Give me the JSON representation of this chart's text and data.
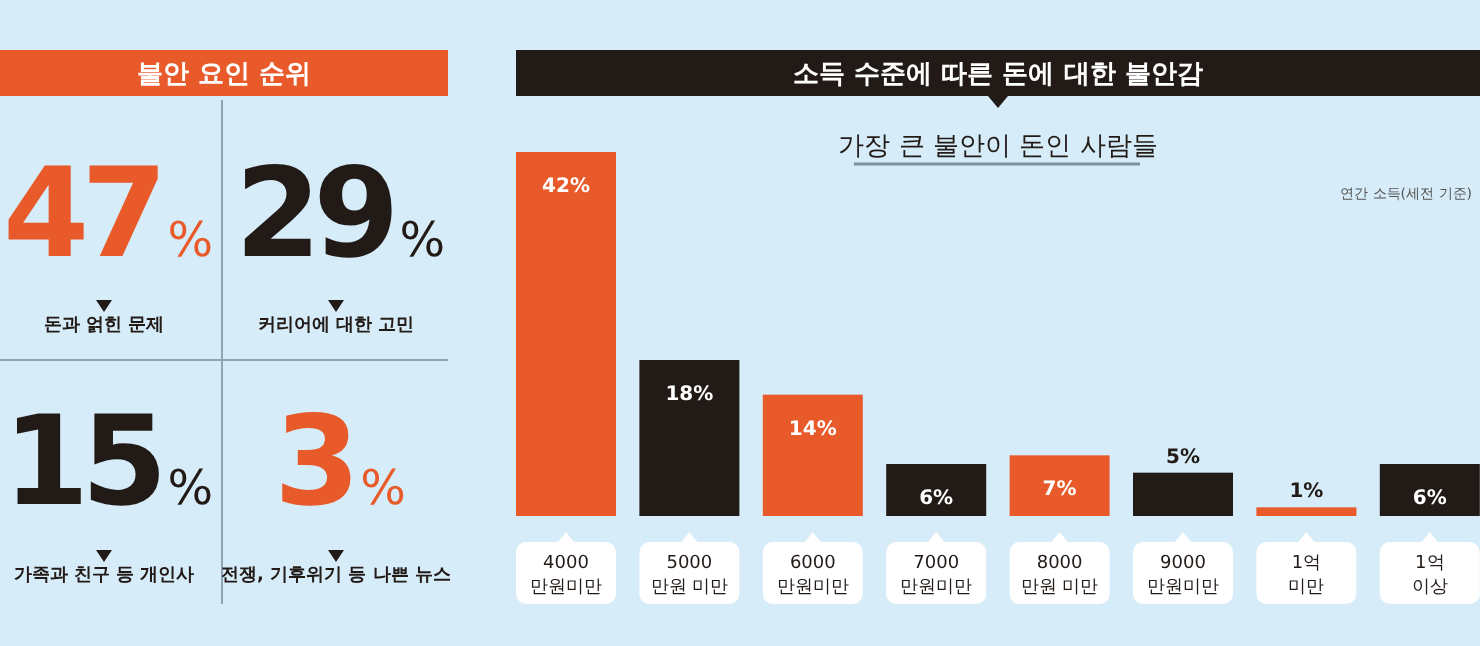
{
  "chart_data": [
    {
      "type": "other",
      "title": "불안 요인 순위",
      "categories": [
        "돈과 얽힌 문제",
        "커리어에 대한 고민",
        "가족과 친구 등 개인사",
        "전쟁, 기후위기 등 나쁜 뉴스"
      ],
      "values": [
        47,
        29,
        15,
        3
      ],
      "value_labels": [
        "47%",
        "29%",
        "15%",
        "3%"
      ],
      "colors": [
        "#e85a2a",
        "#221a16",
        "#221a16",
        "#e85a2a"
      ]
    },
    {
      "type": "bar",
      "title": "소득 수준에 따른 돈에 대한 불안감",
      "subtitle": "가장 큰 불안이 돈인 사람들",
      "annotations": [
        "연간 소득(세전 기준)"
      ],
      "categories": [
        "4000\n만원미만",
        "5000\n만원 미만",
        "6000\n만원미만",
        "7000\n만원미만",
        "8000\n만원 미만",
        "9000\n만원미만",
        "1억\n미만",
        "1억\n이상"
      ],
      "values": [
        42,
        18,
        14,
        6,
        7,
        5,
        1,
        6
      ],
      "value_labels": [
        "42%",
        "18%",
        "14%",
        "6%",
        "7%",
        "5%",
        "1%",
        "6%"
      ],
      "colors": [
        "#e85a2a",
        "#221a16",
        "#e85a2a",
        "#221a16",
        "#e85a2a",
        "#221a16",
        "#e85a2a",
        "#221a16"
      ]
    }
  ]
}
